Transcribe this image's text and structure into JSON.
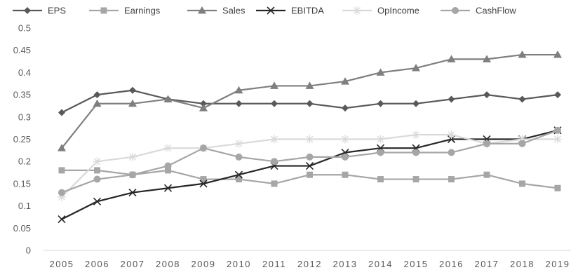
{
  "chart_data": {
    "type": "line",
    "title": "",
    "xlabel": "",
    "ylabel": "",
    "ylim": [
      0,
      0.5
    ],
    "yticks": [
      "0",
      "0.05",
      "0.1",
      "0.15",
      "0.2",
      "0.25",
      "0.3",
      "0.35",
      "0.4",
      "0.45",
      "0.5"
    ],
    "categories": [
      "2005",
      "2006",
      "2007",
      "2008",
      "2009",
      "2010",
      "2011",
      "2012",
      "2013",
      "2014",
      "2015",
      "2016",
      "2017",
      "2018",
      "2019"
    ],
    "grid": false,
    "legend_position": "top",
    "series": [
      {
        "name": "EPS",
        "color": "#595959",
        "marker": "diamond",
        "values": [
          0.31,
          0.35,
          0.36,
          0.34,
          0.33,
          0.33,
          0.33,
          0.33,
          0.32,
          0.33,
          0.33,
          0.34,
          0.35,
          0.34,
          0.35
        ]
      },
      {
        "name": "Earnings",
        "color": "#a6a6a6",
        "marker": "square",
        "values": [
          0.18,
          0.18,
          0.17,
          0.18,
          0.16,
          0.16,
          0.15,
          0.17,
          0.17,
          0.16,
          0.16,
          0.16,
          0.17,
          0.15,
          0.14
        ]
      },
      {
        "name": "Sales",
        "color": "#7f7f7f",
        "marker": "triangle",
        "values": [
          0.23,
          0.33,
          0.33,
          0.34,
          0.32,
          0.36,
          0.37,
          0.37,
          0.38,
          0.4,
          0.41,
          0.43,
          0.43,
          0.44,
          0.44
        ]
      },
      {
        "name": "EBITDA",
        "color": "#262626",
        "marker": "x",
        "values": [
          0.07,
          0.11,
          0.13,
          0.14,
          0.15,
          0.17,
          0.19,
          0.19,
          0.22,
          0.23,
          0.23,
          0.25,
          0.25,
          0.25,
          0.27
        ]
      },
      {
        "name": "OpIncome",
        "color": "#d9d9d9",
        "marker": "star",
        "values": [
          0.12,
          0.2,
          0.21,
          0.23,
          0.23,
          0.24,
          0.25,
          0.25,
          0.25,
          0.25,
          0.26,
          0.26,
          0.24,
          0.25,
          0.25
        ]
      },
      {
        "name": "CashFlow",
        "color": "#a6a6a6",
        "marker": "circle",
        "values": [
          0.13,
          0.16,
          0.17,
          0.19,
          0.23,
          0.21,
          0.2,
          0.21,
          0.21,
          0.22,
          0.22,
          0.22,
          0.24,
          0.24,
          0.27
        ]
      }
    ]
  }
}
